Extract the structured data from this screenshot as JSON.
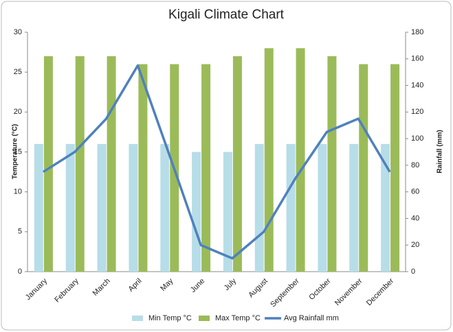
{
  "chart_data": {
    "type": "bar",
    "title": "Kigali Climate Chart",
    "y_label": "Temperature (°C)",
    "y2_label": "Rainfall (mm)",
    "categories": [
      "January",
      "February",
      "March",
      "April",
      "May",
      "June",
      "July",
      "August",
      "September",
      "October",
      "November",
      "December"
    ],
    "series": [
      {
        "name": "Min Temp °C",
        "type": "bar",
        "color": "#b7dde8",
        "values": [
          16,
          16,
          16,
          16,
          16,
          15,
          15,
          16,
          16,
          16,
          16,
          16
        ]
      },
      {
        "name": "Max Temp °C",
        "type": "bar",
        "color": "#9bbb59",
        "values": [
          27,
          27,
          27,
          26,
          26,
          26,
          27,
          28,
          28,
          27,
          26,
          26
        ]
      },
      {
        "name": "Avg Rainfall mm",
        "type": "line",
        "axis": "y2",
        "color": "#4f81bd",
        "values": [
          75,
          90,
          115,
          155,
          88,
          20,
          10,
          30,
          70,
          105,
          115,
          75
        ]
      }
    ],
    "ylim": [
      0,
      30
    ],
    "yticks": [
      0,
      5,
      10,
      15,
      20,
      25,
      30
    ],
    "y2lim": [
      0,
      180
    ],
    "y2ticks": [
      0,
      20,
      40,
      60,
      80,
      100,
      120,
      140,
      160,
      180
    ],
    "grid": false,
    "legend": "bottom"
  }
}
